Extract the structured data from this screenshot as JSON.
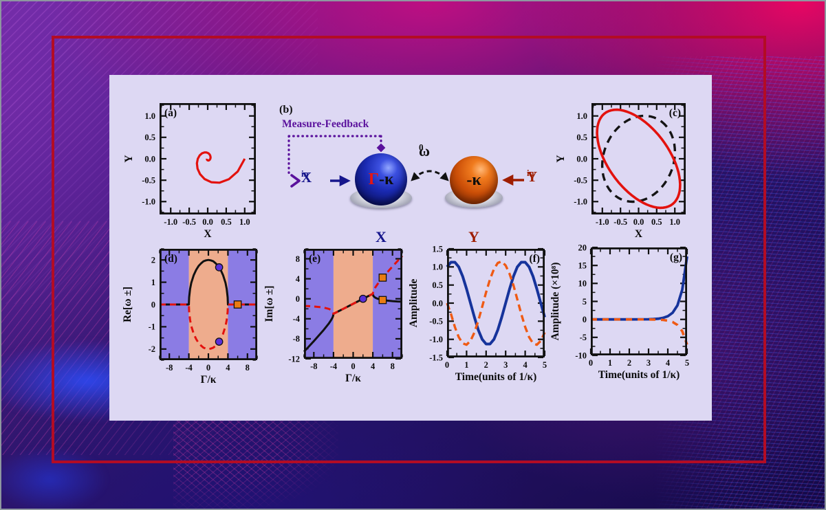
{
  "scene": {
    "frame_color": "#b30c24",
    "figure_bg": "#ddd8f3",
    "accent_pink": "#e9077c",
    "accent_indigo": "#1d1166",
    "region_purple": "#8b7ce4",
    "region_peach": "#eeac8d"
  },
  "diagram": {
    "tag": "(b)",
    "feedback_label": "Measure-Feedback",
    "input_x": {
      "main": "X",
      "sub": "in"
    },
    "input_y": {
      "main": "Y",
      "sub": "in"
    },
    "cavity_x": {
      "gamma": "Γ",
      "kappa": "-κ"
    },
    "cavity_y": {
      "kappa": "-κ"
    },
    "coupling": {
      "main": "ω",
      "sub": "0"
    },
    "mode_x": "X",
    "mode_y": "Y",
    "colors": {
      "feedback": "#5a119c",
      "input_x": "#16168c",
      "input_y": "#9e1e00",
      "gamma": "#e8150f",
      "coupling": "#111111"
    }
  },
  "chart_data": [
    {
      "id": "a",
      "type": "line",
      "tag": "(a)",
      "tag_pos": "tl",
      "xlabel": "X",
      "ylabel": "Y",
      "ylabel_off": 40,
      "xlim": [
        -1.3,
        1.3
      ],
      "ylim": [
        -1.3,
        1.3
      ],
      "xticks": {
        "values": [
          -1,
          -0.5,
          0,
          0.5,
          1
        ],
        "labels": [
          "-1.0",
          "-0.5",
          "0.0",
          "0.5",
          "1.0"
        ]
      },
      "yticks": {
        "values": [
          -1,
          -0.5,
          0,
          0.5,
          1
        ],
        "labels": [
          "-1.0",
          "-0.5",
          "0.0",
          "0.5",
          "1.0"
        ]
      },
      "series": [
        {
          "name": "decaying-spiral-trajectory",
          "color": "#e3120e",
          "width": 3.2,
          "x": [
            1.0,
            0.811,
            0.571,
            0.322,
            0.097,
            -0.083,
            -0.207,
            -0.274,
            -0.291,
            -0.267,
            -0.217,
            -0.153,
            -0.086,
            -0.026,
            0.022,
            0.055,
            0.073,
            0.078,
            0.071,
            0.058,
            0.041,
            0.023,
            0.007,
            -0.006,
            -0.015,
            -0.02,
            -0.021,
            -0.019
          ],
          "y": [
            0.0,
            -0.295,
            -0.479,
            -0.558,
            -0.548,
            -0.473,
            -0.359,
            -0.23,
            -0.106,
            0.0,
            0.079,
            0.128,
            0.149,
            0.146,
            0.126,
            0.096,
            0.062,
            0.028,
            0.0,
            -0.021,
            -0.034,
            -0.04,
            -0.039,
            -0.034,
            -0.026,
            -0.016,
            -0.008,
            0.0
          ]
        }
      ]
    },
    {
      "id": "c",
      "type": "line",
      "tag": "(c)",
      "tag_pos": "tr",
      "xlabel": "X",
      "ylabel": "Y",
      "ylabel_off": 40,
      "xlim": [
        -1.3,
        1.3
      ],
      "ylim": [
        -1.3,
        1.3
      ],
      "xticks": {
        "values": [
          -1,
          -0.5,
          0,
          0.5,
          1
        ],
        "labels": [
          "-1.0",
          "-0.5",
          "0.0",
          "0.5",
          "1.0"
        ]
      },
      "yticks": {
        "values": [
          -1,
          -0.5,
          0,
          0.5,
          1
        ],
        "labels": [
          "-1.0",
          "-0.5",
          "0.0",
          "0.5",
          "1.0"
        ]
      },
      "series": [
        {
          "name": "reference-circle",
          "color": "#141414",
          "width": 3.4,
          "dash": "11 8",
          "ellipse": {
            "cx": 0,
            "cy": 0,
            "rx": 1.08,
            "ry": 0.92,
            "rot": 45
          }
        },
        {
          "name": "limit-cycle-ellipse",
          "color": "#e3120e",
          "width": 3.6,
          "ellipse": {
            "cx": 0,
            "cy": 0,
            "rx": 1.42,
            "ry": 0.78,
            "rot": 135
          }
        }
      ]
    },
    {
      "id": "d",
      "type": "line",
      "tag": "(d)",
      "tag_pos": "tl",
      "xlabel": "Γ/κ",
      "ylabel": "Re[ω ±]",
      "ylabel_off": 42,
      "xlim": [
        -10,
        10
      ],
      "ylim": [
        -2.5,
        2.5
      ],
      "xticks": {
        "values": [
          -8,
          -4,
          0,
          4,
          8
        ],
        "labels": [
          "-8",
          "-4",
          "0",
          "4",
          "8"
        ]
      },
      "yticks": {
        "values": [
          -2,
          -1,
          0,
          1,
          2
        ],
        "labels": [
          "-2",
          "-1",
          "0",
          "1",
          "2"
        ]
      },
      "regions": [
        {
          "from": -10,
          "to": -4,
          "color": "#8b7ce4"
        },
        {
          "from": -4,
          "to": 4,
          "color": "#eeac8d"
        },
        {
          "from": 4,
          "to": 10,
          "color": "#8b7ce4"
        }
      ],
      "series": [
        {
          "name": "re-omega-plus",
          "color": "#111111",
          "width": 3,
          "x": [
            -10,
            -4,
            -3.95,
            -3.75,
            -3.5,
            -3,
            -2.5,
            -2,
            -1.5,
            -1,
            -0.5,
            0,
            0.5,
            1,
            1.5,
            2,
            2.5,
            3,
            3.5,
            3.75,
            3.95,
            4,
            10
          ],
          "y": [
            0,
            0,
            0.32,
            0.7,
            0.97,
            1.32,
            1.56,
            1.73,
            1.85,
            1.94,
            1.98,
            2,
            1.98,
            1.94,
            1.85,
            1.73,
            1.56,
            1.32,
            0.97,
            0.7,
            0.32,
            0,
            0
          ]
        },
        {
          "name": "re-omega-minus",
          "color": "#e3120e",
          "width": 3,
          "dash": "9 6",
          "x": [
            -10,
            -4,
            -3.95,
            -3.75,
            -3.5,
            -3,
            -2.5,
            -2,
            -1.5,
            -1,
            -0.5,
            0,
            0.5,
            1,
            1.5,
            2,
            2.5,
            3,
            3.5,
            3.75,
            3.95,
            4,
            10
          ],
          "y": [
            0,
            0,
            -0.32,
            -0.7,
            -0.97,
            -1.32,
            -1.56,
            -1.73,
            -1.85,
            -1.94,
            -1.98,
            -2,
            -1.98,
            -1.94,
            -1.85,
            -1.73,
            -1.56,
            -1.32,
            -0.97,
            -0.7,
            -0.32,
            0,
            0
          ]
        }
      ],
      "markers": [
        {
          "shape": "circle",
          "x": 2.2,
          "y": 1.67,
          "color": "#5b30d8"
        },
        {
          "shape": "circle",
          "x": 2.2,
          "y": -1.67,
          "color": "#5b30d8"
        },
        {
          "shape": "square",
          "x": 6,
          "y": 0,
          "color": "#ea7c12"
        }
      ]
    },
    {
      "id": "e",
      "type": "line",
      "tag": "(e)",
      "tag_pos": "tl",
      "xlabel": "Γ/κ",
      "ylabel": "Im[ω ±]",
      "ylabel_off": 46,
      "xlim": [
        -10,
        10
      ],
      "ylim": [
        -12,
        10
      ],
      "xticks": {
        "values": [
          -8,
          -4,
          0,
          4,
          8
        ],
        "labels": [
          "-8",
          "-4",
          "0",
          "4",
          "8"
        ]
      },
      "yticks": {
        "values": [
          -12,
          -8,
          -4,
          0,
          4,
          8
        ],
        "labels": [
          "-12",
          "-8",
          "-4",
          "0",
          "4",
          "8"
        ]
      },
      "regions": [
        {
          "from": -10,
          "to": -4,
          "color": "#8b7ce4"
        },
        {
          "from": -4,
          "to": 4,
          "color": "#eeac8d"
        },
        {
          "from": 4,
          "to": 10,
          "color": "#8b7ce4"
        }
      ],
      "series": [
        {
          "name": "im-omega-minus",
          "color": "#111111",
          "width": 3,
          "x": [
            -10,
            -9,
            -8,
            -7,
            -6,
            -5,
            -4.5,
            -4.25,
            -4.1,
            -4,
            -2,
            0,
            2,
            4,
            4.1,
            4.25,
            4.5,
            5,
            6,
            7,
            8,
            9,
            10
          ],
          "y": [
            -10.58,
            -9.53,
            -8.46,
            -7.37,
            -6.24,
            -5.0,
            -4.28,
            -3.84,
            -3.5,
            -3.0,
            -2.0,
            -1.0,
            0.0,
            1.0,
            0.6,
            0.41,
            0.22,
            0.0,
            -0.24,
            -0.37,
            -0.46,
            -0.53,
            -0.58
          ]
        },
        {
          "name": "im-omega-plus",
          "color": "#e3120e",
          "width": 3,
          "dash": "9 6",
          "x": [
            -10,
            -9,
            -8,
            -7,
            -6,
            -5,
            -4.5,
            -4.25,
            -4.1,
            -4,
            -2,
            0,
            2,
            4,
            4.1,
            4.25,
            4.5,
            5,
            6,
            7,
            8,
            9,
            10
          ],
          "y": [
            -1.42,
            -1.47,
            -1.54,
            -1.63,
            -1.76,
            -2.0,
            -2.22,
            -2.41,
            -2.6,
            -3.0,
            -2.0,
            -1.0,
            0.0,
            1.0,
            1.5,
            1.84,
            2.28,
            3.0,
            4.24,
            5.37,
            6.46,
            7.53,
            8.58
          ]
        }
      ],
      "markers": [
        {
          "shape": "circle",
          "x": 2,
          "y": 0,
          "color": "#5b30d8"
        },
        {
          "shape": "square",
          "x": 6,
          "y": 4.24,
          "color": "#ea7c12"
        },
        {
          "shape": "square",
          "x": 6,
          "y": -0.24,
          "color": "#ea7c12"
        }
      ]
    },
    {
      "id": "f",
      "type": "line",
      "tag": "(f)",
      "tag_pos": "tr",
      "xlabel": "Time(units of 1/κ)",
      "ylabel": "Amplitude",
      "ylabel_off": 44,
      "xlim": [
        0,
        5
      ],
      "ylim": [
        -1.5,
        1.5
      ],
      "xticks": {
        "values": [
          0,
          1,
          2,
          3,
          4,
          5
        ],
        "labels": [
          "0",
          "1",
          "2",
          "3",
          "4",
          "5"
        ]
      },
      "yticks": {
        "values": [
          -1.5,
          -1,
          -0.5,
          0,
          0.5,
          1,
          1.5
        ],
        "labels": [
          "-1.5",
          "-1.0",
          "-0.5",
          "0.0",
          "0.5",
          "1.0",
          "1.5"
        ]
      },
      "series": [
        {
          "name": "x-quadrature",
          "color": "#16339b",
          "width": 4,
          "x": [
            0,
            0.2,
            0.4,
            0.6,
            0.8,
            1,
            1.2,
            1.4,
            1.6,
            1.8,
            2,
            2.2,
            2.4,
            2.6,
            2.8,
            3,
            3.2,
            3.4,
            3.6,
            3.8,
            4,
            4.2,
            4.4,
            4.6,
            4.8,
            5
          ],
          "y": [
            1,
            1.13,
            1.13,
            1,
            0.74,
            0.39,
            0,
            -0.39,
            -0.74,
            -1,
            -1.13,
            -1.13,
            -1,
            -0.74,
            -0.39,
            0,
            0.39,
            0.74,
            1,
            1.13,
            1.13,
            1,
            0.74,
            0.39,
            0,
            -0.39
          ]
        },
        {
          "name": "y-quadrature",
          "color": "#ef5a14",
          "width": 3.4,
          "dash": "10 6",
          "x": [
            0,
            0.2,
            0.4,
            0.6,
            0.8,
            1,
            1.2,
            1.4,
            1.6,
            1.8,
            2,
            2.2,
            2.4,
            2.6,
            2.8,
            3,
            3.2,
            3.4,
            3.6,
            3.8,
            4,
            4.2,
            4.4,
            4.6,
            4.8,
            5
          ],
          "y": [
            0,
            -0.3,
            -0.66,
            -0.94,
            -1.11,
            -1.15,
            -1.04,
            -0.81,
            -0.49,
            -0.1,
            0.3,
            0.66,
            0.94,
            1.11,
            1.15,
            1.04,
            0.81,
            0.49,
            0.1,
            -0.3,
            -0.66,
            -0.94,
            -1.11,
            -1.15,
            -1.04,
            -0.81
          ]
        }
      ]
    },
    {
      "id": "g",
      "type": "line",
      "tag": "(g)",
      "tag_pos": "tr",
      "xlabel": "Time(units of 1/κ)",
      "ylabel": "Amplitude (×10⁸)",
      "ylabel_off": 47,
      "xlim": [
        0,
        5
      ],
      "ylim": [
        -10,
        20
      ],
      "xticks": {
        "values": [
          0,
          1,
          2,
          3,
          4,
          5
        ],
        "labels": [
          "0",
          "1",
          "2",
          "3",
          "4",
          "5"
        ]
      },
      "yticks": {
        "values": [
          -10,
          -5,
          0,
          5,
          10,
          15,
          20
        ],
        "labels": [
          "-10",
          "-5",
          "0",
          "5",
          "10",
          "15",
          "20"
        ]
      },
      "series": [
        {
          "name": "x-amplitude-diverging",
          "color": "#16339b",
          "width": 3.8,
          "x": [
            0,
            0.5,
            1,
            1.5,
            2,
            2.5,
            3,
            3.25,
            3.5,
            3.75,
            4,
            4.25,
            4.5,
            4.75,
            5
          ],
          "y": [
            0,
            0,
            0,
            0,
            0,
            0.01,
            0.04,
            0.09,
            0.19,
            0.41,
            0.87,
            1.84,
            3.9,
            8.26,
            17.5
          ]
        },
        {
          "name": "y-amplitude-diverging",
          "color": "#ef5a14",
          "width": 3.6,
          "dash": "9 8",
          "x": [
            0,
            0.5,
            1,
            1.5,
            2,
            2.5,
            3,
            3.25,
            3.5,
            3.75,
            4,
            4.25,
            4.5,
            4.75,
            5
          ],
          "y": [
            0,
            0,
            0,
            0,
            0,
            -0.01,
            -0.02,
            -0.04,
            -0.08,
            -0.16,
            -0.35,
            -0.74,
            -1.56,
            -3.3,
            -7
          ]
        }
      ]
    }
  ]
}
